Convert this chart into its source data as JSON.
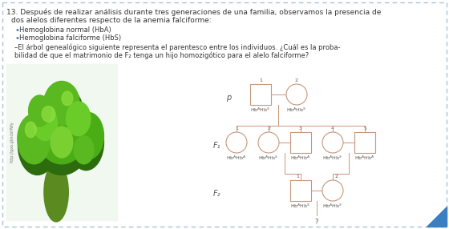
{
  "bg_color": "#ffffff",
  "border_color": "#a8c4d8",
  "line_color": "#c8967a",
  "shape_color": "#c8967a",
  "text_color": "#555555",
  "dark_text": "#333333",
  "title_line1": "13. Después de realizar análisis durante tres generaciones de una familia, observamos la presencia de",
  "title_line2": "dos alelos diferentes respecto de la anemia falciforme:",
  "bullet1": "Hemoglobina normal (HbA)",
  "bullet2": "Hemoglobina falciforme (HbS)",
  "para_line1": "–El árbol genealógico siguiente representa el parentesco entre los individuos. ¿Cuál es la proba-",
  "para_line2": "bilidad de que el matrimonio de F₂ tenga un hijo homozigótico para el alelo falciforme?",
  "label_P": "p",
  "label_F1": "F₁",
  "label_F2": "F₂",
  "P_male_geno": "Hb$^A$Hb$^S$",
  "P_female_geno": "Hb$^A$Hb$^S$",
  "F1_genos": [
    "Hb$^A$Hb$^A$",
    "Hb$^A$Hb$^S$",
    "Hb$^A$Hb$^A$",
    "Hb$^A$Hb$^S$",
    "Hb$^A$Hb$^A$"
  ],
  "F2_genos": [
    "Hb$^A$Hb$^S$",
    "Hb$^A$Hb$^S$"
  ],
  "question": "?"
}
